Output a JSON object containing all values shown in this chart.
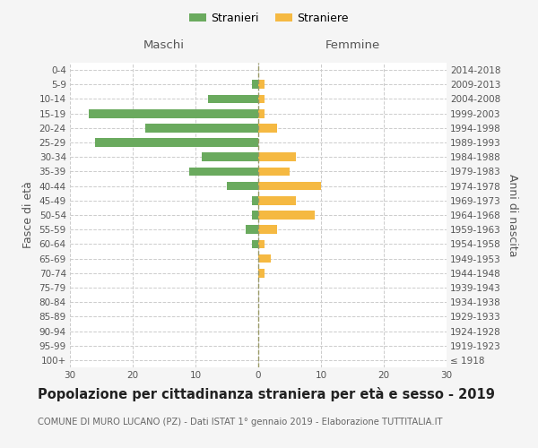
{
  "age_groups": [
    "100+",
    "95-99",
    "90-94",
    "85-89",
    "80-84",
    "75-79",
    "70-74",
    "65-69",
    "60-64",
    "55-59",
    "50-54",
    "45-49",
    "40-44",
    "35-39",
    "30-34",
    "25-29",
    "20-24",
    "15-19",
    "10-14",
    "5-9",
    "0-4"
  ],
  "birth_years": [
    "≤ 1918",
    "1919-1923",
    "1924-1928",
    "1929-1933",
    "1934-1938",
    "1939-1943",
    "1944-1948",
    "1949-1953",
    "1954-1958",
    "1959-1963",
    "1964-1968",
    "1969-1973",
    "1974-1978",
    "1979-1983",
    "1984-1988",
    "1989-1993",
    "1994-1998",
    "1999-2003",
    "2004-2008",
    "2009-2013",
    "2014-2018"
  ],
  "males": [
    0,
    0,
    0,
    0,
    0,
    0,
    0,
    0,
    1,
    2,
    1,
    1,
    5,
    11,
    9,
    26,
    18,
    27,
    8,
    1,
    0
  ],
  "females": [
    0,
    0,
    0,
    0,
    0,
    0,
    1,
    2,
    1,
    3,
    9,
    6,
    10,
    5,
    6,
    0,
    3,
    1,
    1,
    1,
    0
  ],
  "male_color": "#6aaa5e",
  "female_color": "#f5b942",
  "title": "Popolazione per cittadinanza straniera per età e sesso - 2019",
  "subtitle": "COMUNE DI MURO LUCANO (PZ) - Dati ISTAT 1° gennaio 2019 - Elaborazione TUTTITALIA.IT",
  "ylabel_left": "Fasce di età",
  "ylabel_right": "Anni di nascita",
  "label_maschi": "Maschi",
  "label_femmine": "Femmine",
  "legend_male": "Stranieri",
  "legend_female": "Straniere",
  "xlim": 30,
  "bg_color": "#f5f5f5",
  "plot_bg": "#ffffff",
  "grid_color": "#cccccc",
  "title_fontsize": 10.5,
  "subtitle_fontsize": 7.2,
  "tick_fontsize": 7.5,
  "label_fontsize": 9
}
